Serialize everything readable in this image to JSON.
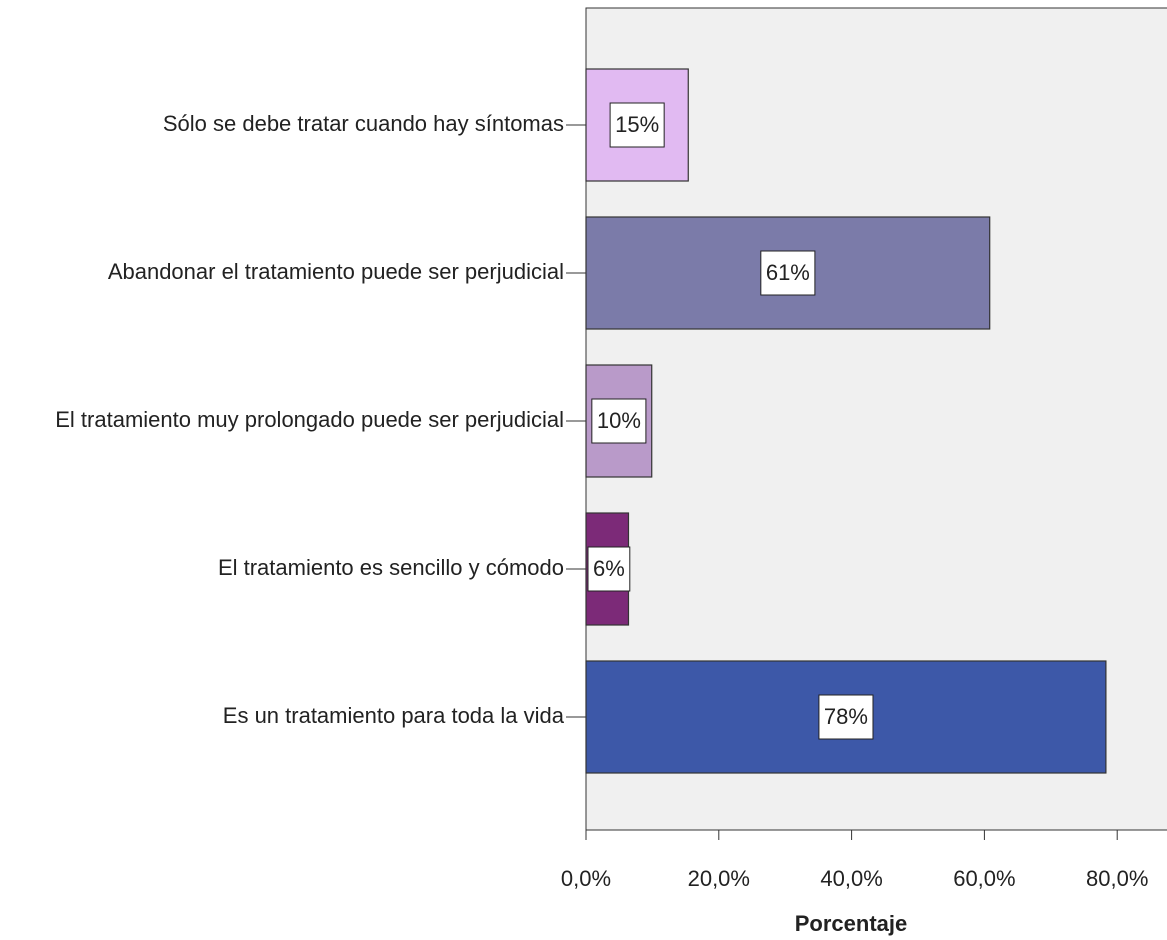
{
  "chart_data": {
    "type": "hbar",
    "categories": [
      "Sólo se debe tratar cuando hay síntomas",
      "Abandonar el tratamiento puede ser perjudicial",
      "El tratamiento muy prolongado puede ser perjudicial",
      "El tratamiento es sencillo y cómodo",
      "Es un tratamiento para toda la vida"
    ],
    "values": [
      15.4,
      60.8,
      9.9,
      6.4,
      78.3
    ],
    "value_labels": [
      "15%",
      "61%",
      "10%",
      "6%",
      "78%"
    ],
    "colors": [
      "#e1baf2",
      "#7b7ba9",
      "#b99ac9",
      "#7c2a78",
      "#3d58a8"
    ],
    "x_label": "Porcentaje",
    "xlim": [
      0,
      87.5
    ],
    "xticks": [
      {
        "value": 0,
        "label": "0,0%"
      },
      {
        "value": 20,
        "label": "20,0%"
      },
      {
        "value": 40,
        "label": "40,0%"
      },
      {
        "value": 60,
        "label": "60,0%"
      },
      {
        "value": 80,
        "label": "80,0%"
      }
    ]
  }
}
